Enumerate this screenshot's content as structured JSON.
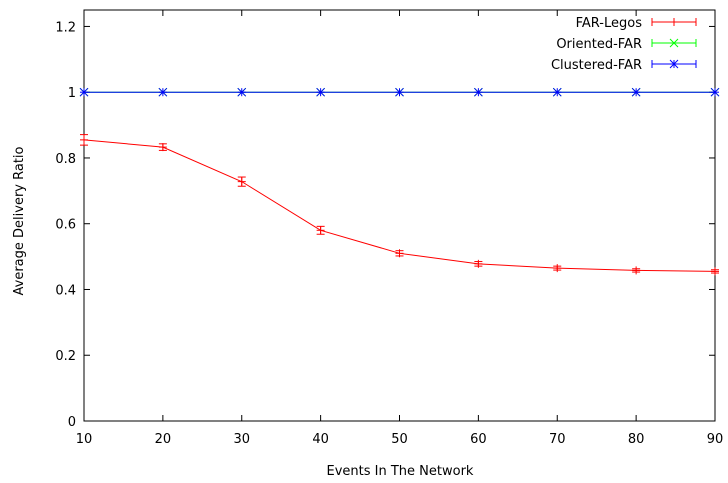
{
  "chart_data": {
    "type": "line",
    "title": "",
    "xlabel": "Events In The Network",
    "ylabel": "Average Delivery Ratio",
    "xlim": [
      10,
      90
    ],
    "ylim": [
      0,
      1.25
    ],
    "x": [
      10,
      20,
      30,
      40,
      50,
      60,
      70,
      80,
      90
    ],
    "x_ticks": [
      10,
      20,
      30,
      40,
      50,
      60,
      70,
      80,
      90
    ],
    "y_ticks": [
      0,
      0.2,
      0.4,
      0.6,
      0.8,
      1,
      1.2
    ],
    "y_tick_labels": [
      "0",
      "0.2",
      "0.4",
      "0.6",
      "0.8",
      "1",
      "1.2"
    ],
    "grid": false,
    "legend_position": "top-right",
    "series": [
      {
        "name": "FAR-Legos",
        "color": "#ff0000",
        "marker": "plus",
        "values": [
          0.855,
          0.833,
          0.728,
          0.58,
          0.51,
          0.478,
          0.465,
          0.458,
          0.455
        ],
        "errors": [
          0.016,
          0.01,
          0.014,
          0.012,
          0.008,
          0.007,
          0.006,
          0.005,
          0.005
        ]
      },
      {
        "name": "Oriented-FAR",
        "color": "#00ff00",
        "marker": "x",
        "values": [
          1,
          1,
          1,
          1,
          1,
          1,
          1,
          1,
          1
        ],
        "errors": [
          0,
          0,
          0,
          0,
          0,
          0,
          0,
          0,
          0
        ]
      },
      {
        "name": "Clustered-FAR",
        "color": "#0000ff",
        "marker": "star",
        "values": [
          1,
          1,
          1,
          1,
          1,
          1,
          1,
          1,
          1
        ],
        "errors": [
          0,
          0,
          0,
          0,
          0,
          0,
          0,
          0,
          0
        ]
      }
    ]
  }
}
